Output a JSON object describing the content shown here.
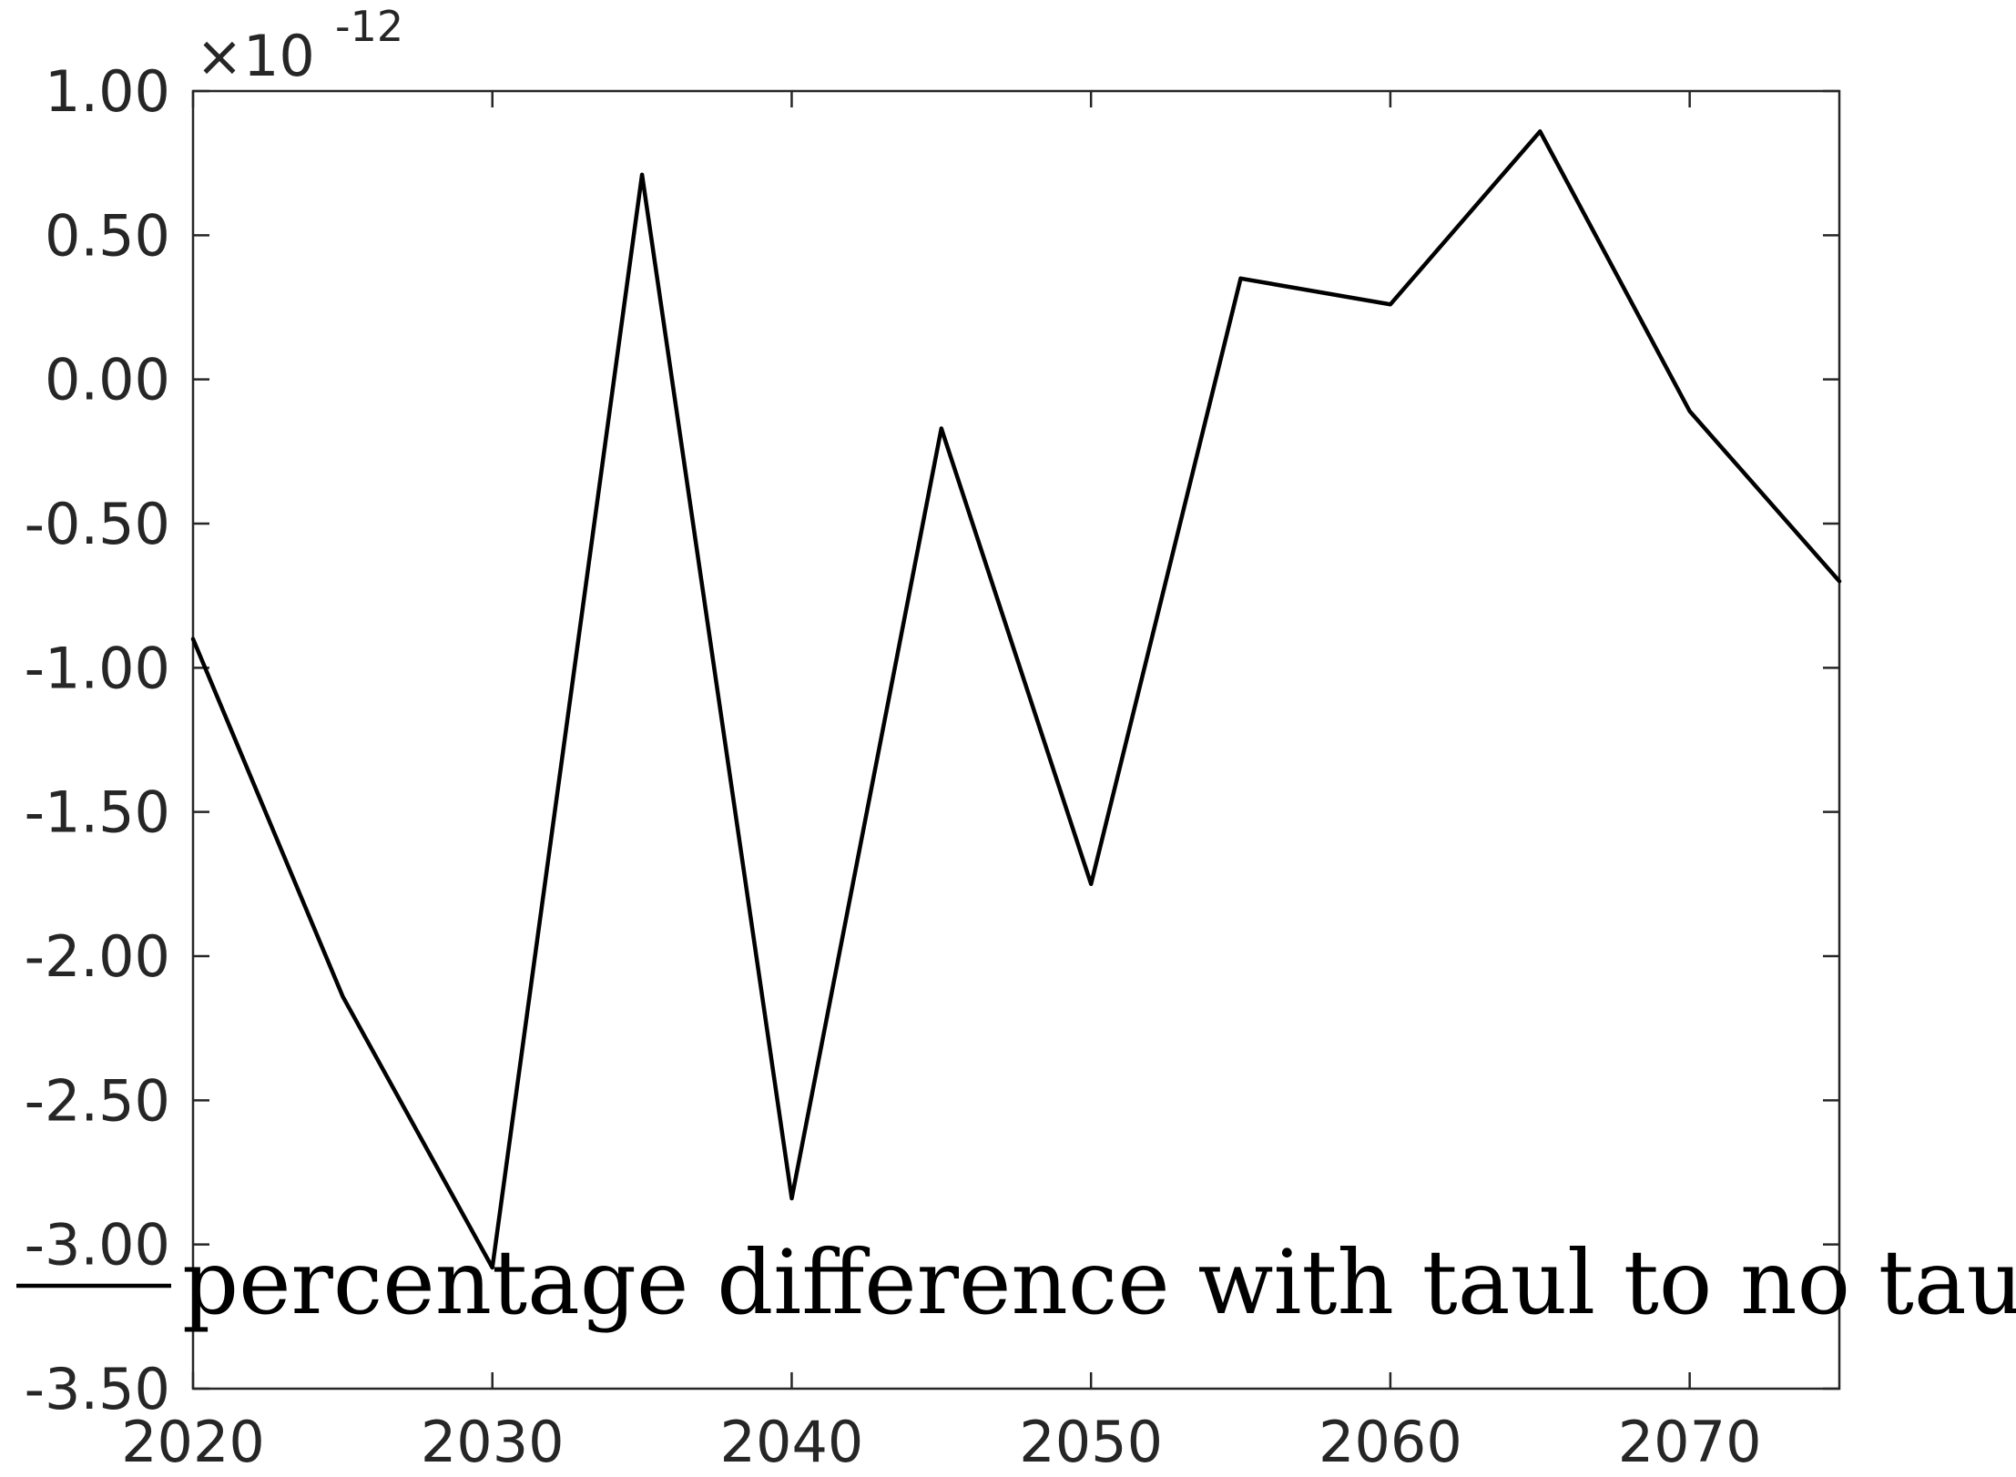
{
  "chart_data": {
    "type": "line",
    "title": "",
    "xlabel": "",
    "ylabel": "",
    "exponent": {
      "base": "×10",
      "power": "-12"
    },
    "xlim": [
      2020,
      2075
    ],
    "ylim": [
      -3.5,
      1.0
    ],
    "xticks": [
      2020,
      2030,
      2040,
      2050,
      2060,
      2070
    ],
    "xtick_labels": [
      "2020",
      "2030",
      "2040",
      "2050",
      "2060",
      "2070"
    ],
    "yticks": [
      1.0,
      0.5,
      0.0,
      -0.5,
      -1.0,
      -1.5,
      -2.0,
      -2.5,
      -3.0,
      -3.5
    ],
    "ytick_labels": [
      "1.00",
      "0.50",
      "0.00",
      "-0.50",
      "-1.00",
      "-1.50",
      "-2.00",
      "-2.50",
      "-3.00",
      "-3.50"
    ],
    "grid": false,
    "legend_position": "bottom",
    "series": [
      {
        "name": "percentage difference with taul to no taul",
        "color": "#000000",
        "x": [
          2020,
          2025,
          2030,
          2035,
          2040,
          2045,
          2050,
          2055,
          2060,
          2065,
          2070,
          2075
        ],
        "values": [
          -0.9,
          -2.14,
          -3.08,
          0.71,
          -2.84,
          -0.17,
          -1.75,
          0.35,
          0.26,
          0.86,
          -0.11,
          -0.7
        ]
      }
    ]
  }
}
